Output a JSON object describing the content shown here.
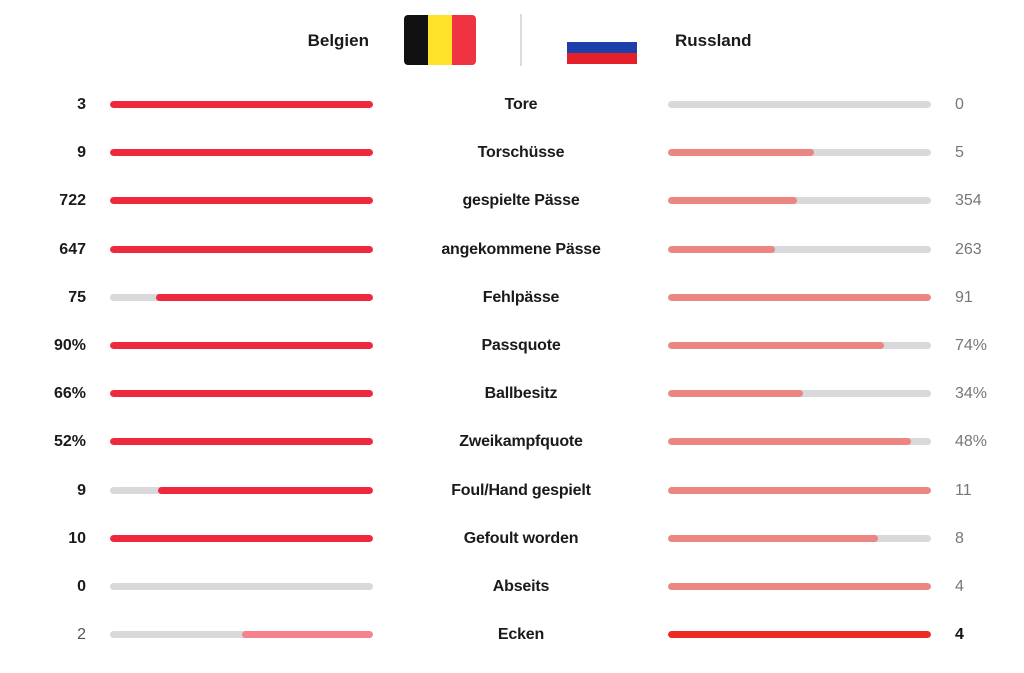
{
  "home": {
    "name": "Belgien",
    "flag_colors": [
      "#111111",
      "#FFE22A",
      "#EF3340"
    ]
  },
  "away": {
    "name": "Russland",
    "flag_colors": [
      "#FFFFFF",
      "#1C3FAA",
      "#E4202A"
    ]
  },
  "colors": {
    "home_bar": "#F0283C",
    "home_bar_light": "#F5828C",
    "away_bar": "#EC8682",
    "away_bar_strong": "#EE2A24",
    "track": "#D9D9DB"
  },
  "stats": [
    {
      "label": "Tore",
      "home": "3",
      "away": "0",
      "home_share": 1.0,
      "away_share": 0.0
    },
    {
      "label": "Torschüsse",
      "home": "9",
      "away": "5",
      "home_share": 1.0,
      "away_share": 0.556
    },
    {
      "label": "gespielte Pässe",
      "home": "722",
      "away": "354",
      "home_share": 1.0,
      "away_share": 0.49
    },
    {
      "label": "angekommene Pässe",
      "home": "647",
      "away": "263",
      "home_share": 1.0,
      "away_share": 0.406
    },
    {
      "label": "Fehlpässe",
      "home": "75",
      "away": "91",
      "home_share": 0.824,
      "away_share": 1.0
    },
    {
      "label": "Passquote",
      "home": "90%",
      "away": "74%",
      "home_share": 1.0,
      "away_share": 0.822
    },
    {
      "label": "Ballbesitz",
      "home": "66%",
      "away": "34%",
      "home_share": 1.0,
      "away_share": 0.515
    },
    {
      "label": "Zweikampfquote",
      "home": "52%",
      "away": "48%",
      "home_share": 1.0,
      "away_share": 0.923
    },
    {
      "label": "Foul/Hand gespielt",
      "home": "9",
      "away": "11",
      "home_share": 0.818,
      "away_share": 1.0
    },
    {
      "label": "Gefoult worden",
      "home": "10",
      "away": "8",
      "home_share": 1.0,
      "away_share": 0.8
    },
    {
      "label": "Abseits",
      "home": "0",
      "away": "4",
      "home_share": 0.0,
      "away_share": 1.0
    },
    {
      "label": "Ecken",
      "home": "2",
      "away": "4",
      "home_share": 0.5,
      "away_share": 1.0,
      "home_leading": false,
      "away_leading": true
    }
  ]
}
